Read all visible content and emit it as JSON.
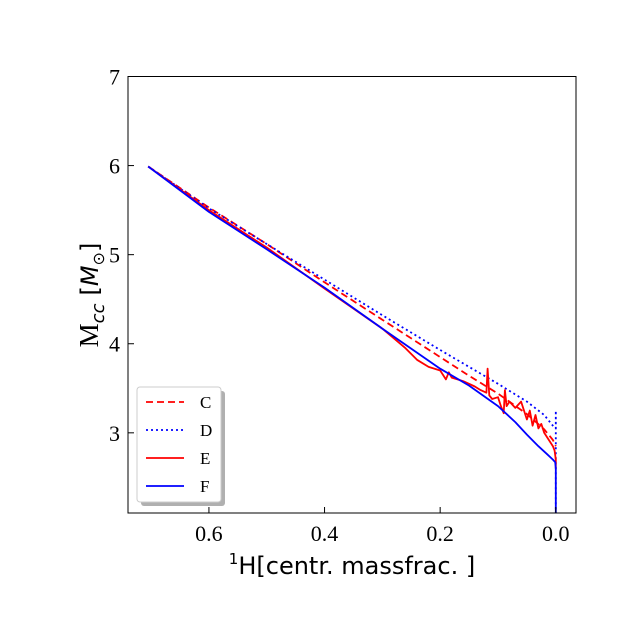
{
  "chart_data": {
    "type": "line",
    "xlabel": {
      "sup": "1",
      "text": "H[centr. massfrac. ]"
    },
    "ylabel": {
      "main": "M",
      "sub": "cc",
      "unit": "[",
      "unit_sym": "M",
      "unit_sub": "⊙",
      "unit_close": "]"
    },
    "x_inverted": true,
    "xlim": [
      0.74,
      -0.035
    ],
    "ylim": [
      2.1,
      7.0
    ],
    "xticks": [
      0.6,
      0.4,
      0.2,
      0.0
    ],
    "xtick_labels": [
      "0.6",
      "0.4",
      "0.2",
      "0.0"
    ],
    "yticks": [
      3,
      4,
      5,
      6,
      7
    ],
    "ytick_labels": [
      "3",
      "4",
      "5",
      "6",
      "7"
    ],
    "grid": false,
    "legend_position": "lower-left",
    "series": [
      {
        "name": "C",
        "color": "#ff0000",
        "style": "dashed",
        "x": [
          0.705,
          0.6,
          0.5,
          0.4,
          0.3,
          0.2,
          0.15,
          0.1,
          0.05,
          0.02,
          0.005,
          0.0
        ],
        "y": [
          5.99,
          5.53,
          5.12,
          4.69,
          4.27,
          3.85,
          3.64,
          3.44,
          3.21,
          3.04,
          2.92,
          2.85
        ]
      },
      {
        "name": "D",
        "color": "#0000ff",
        "style": "dotted",
        "x": [
          0.705,
          0.6,
          0.5,
          0.4,
          0.3,
          0.2,
          0.1,
          0.05,
          0.02,
          0.005,
          0.0,
          0.0,
          0.0
        ],
        "y": [
          5.99,
          5.52,
          5.12,
          4.72,
          4.32,
          3.93,
          3.55,
          3.35,
          3.2,
          3.08,
          3.05,
          3.25,
          2.1
        ]
      },
      {
        "name": "E",
        "color": "#ff0000",
        "style": "solid",
        "x": [
          0.705,
          0.6,
          0.5,
          0.4,
          0.3,
          0.26,
          0.24,
          0.22,
          0.2,
          0.19,
          0.185,
          0.18,
          0.17,
          0.16,
          0.15,
          0.14,
          0.13,
          0.12,
          0.118,
          0.115,
          0.11,
          0.1,
          0.095,
          0.09,
          0.088,
          0.085,
          0.08,
          0.07,
          0.06,
          0.05,
          0.045,
          0.04,
          0.035,
          0.03,
          0.025,
          0.02,
          0.015,
          0.01,
          0.005,
          0.002,
          0.0,
          0.0
        ],
        "y": [
          5.99,
          5.5,
          5.08,
          4.62,
          4.17,
          3.95,
          3.82,
          3.74,
          3.7,
          3.6,
          3.68,
          3.62,
          3.6,
          3.58,
          3.55,
          3.52,
          3.48,
          3.45,
          3.72,
          3.42,
          3.38,
          3.4,
          3.3,
          3.22,
          3.48,
          3.3,
          3.35,
          3.28,
          3.35,
          3.15,
          3.25,
          3.08,
          3.2,
          3.05,
          3.1,
          3.0,
          2.95,
          2.9,
          2.85,
          2.8,
          2.7,
          2.6
        ]
      },
      {
        "name": "F",
        "color": "#0000ff",
        "style": "solid",
        "x": [
          0.705,
          0.6,
          0.5,
          0.4,
          0.3,
          0.2,
          0.15,
          0.1,
          0.07,
          0.05,
          0.03,
          0.015,
          0.005,
          0.001,
          0.0,
          0.0
        ],
        "y": [
          5.99,
          5.48,
          5.06,
          4.63,
          4.17,
          3.72,
          3.53,
          3.3,
          3.12,
          2.98,
          2.85,
          2.76,
          2.7,
          2.67,
          2.6,
          2.1
        ]
      }
    ]
  }
}
